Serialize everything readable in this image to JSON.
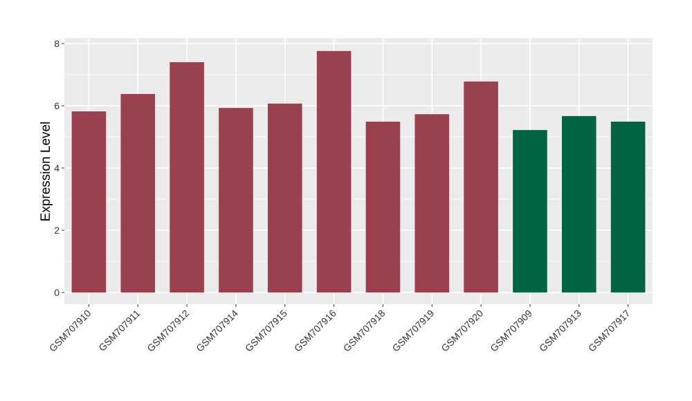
{
  "chart_data": {
    "type": "bar",
    "title": "",
    "xlabel": "",
    "ylabel": "Expression Level",
    "ylim": [
      0,
      8
    ],
    "yticks": [
      0,
      2,
      4,
      6,
      8
    ],
    "grid": true,
    "legend": "none",
    "categories": [
      "GSM707910",
      "GSM707911",
      "GSM707912",
      "GSM707914",
      "GSM707915",
      "GSM707916",
      "GSM707918",
      "GSM707919",
      "GSM707920",
      "GSM707909",
      "GSM707913",
      "GSM707917"
    ],
    "values": [
      5.82,
      6.38,
      7.4,
      5.93,
      6.07,
      7.76,
      5.49,
      5.73,
      6.78,
      5.22,
      5.67,
      5.49
    ],
    "bar_colors": [
      "#9A4150",
      "#9A4150",
      "#9A4150",
      "#9A4150",
      "#9A4150",
      "#9A4150",
      "#9A4150",
      "#9A4150",
      "#9A4150",
      "#006442",
      "#006442",
      "#006442"
    ],
    "panel_background": "#EBEBEB",
    "grid_color": "#FFFFFF"
  }
}
